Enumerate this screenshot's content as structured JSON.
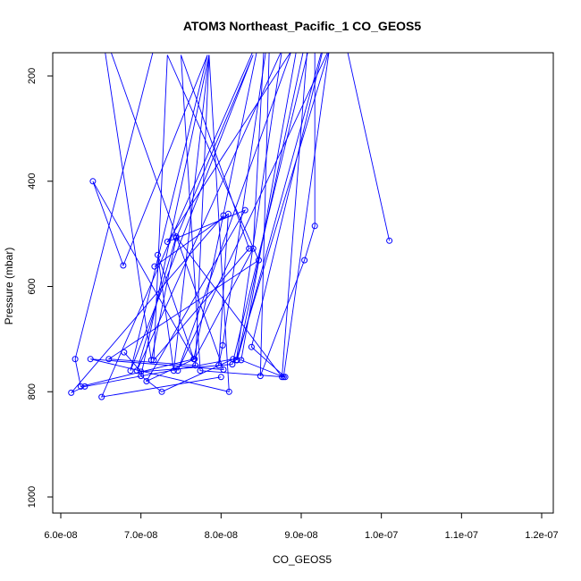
{
  "chart_data": {
    "type": "line",
    "title": "ATOM3 Northeast_Pacific_1 CO_GEOS5",
    "xlabel": "CO_GEOS5",
    "ylabel": "Pressure (mbar)",
    "xlim": [
      6e-08,
      1.2e-07
    ],
    "ylim": [
      1000,
      200
    ],
    "y_reversed": true,
    "x_ticks": [
      6e-08,
      7e-08,
      8e-08,
      9e-08,
      1e-07,
      1.1e-07,
      1.2e-07
    ],
    "x_tick_labels": [
      "6.0e-08",
      "7.0e-08",
      "8.0e-08",
      "9.0e-08",
      "1.0e-07",
      "1.1e-07",
      "1.2e-07"
    ],
    "y_ticks": [
      200,
      400,
      600,
      800,
      1000
    ],
    "y_tick_labels": [
      "200",
      "400",
      "600",
      "800",
      "1000"
    ],
    "grid": false,
    "series_color": "#0000ff",
    "series": [
      {
        "x": [
          7.24e-08,
          6.18e-08,
          6.25e-08,
          7.66e-08,
          7.21e-08,
          7.41e-08,
          7.85e-08,
          8.1e-08,
          6.37e-08,
          8.03e-08,
          6.5e-08,
          7.13e-08,
          7.44e-08,
          8.4e-08,
          6.87e-08,
          7.83e-08,
          6.78e-08,
          6.4e-08,
          7.66e-08,
          8.45e-08
        ],
        "y": [
          100,
          738,
          790,
          738,
          540,
          760,
          160,
          800,
          738,
          758,
          100,
          740,
          508,
          160,
          760,
          160,
          560,
          400,
          738,
          150
        ]
      },
      {
        "x": [
          8.03e-08,
          6.13e-08,
          6.3e-08,
          8.15e-08,
          7.26e-08,
          7e-08,
          7.85e-08,
          7.68e-08,
          6.6e-08,
          8.47e-08,
          7.33e-08,
          7.16e-08,
          8.35e-08,
          7.5e-08,
          7.74e-08,
          8.8e-08,
          8.38e-08,
          9.35e-08,
          8.2e-08,
          9.1e-08
        ],
        "y": [
          465,
          802,
          790,
          738,
          800,
          770,
          160,
          750,
          738,
          550,
          160,
          740,
          528,
          160,
          760,
          772,
          715,
          100,
          740,
          100
        ]
      },
      {
        "x": [
          8e-08,
          6.51e-08,
          8.55e-08,
          8.4e-08,
          7.67e-08,
          7.07e-08,
          8.3e-08,
          7.33e-08,
          9.1e-08,
          8.76e-08,
          7.44e-08,
          6.95e-08,
          8.76e-08,
          8.19e-08,
          9.35e-08,
          8.78e-08,
          8.25e-08,
          9e-08,
          7.46e-08,
          9.5e-08,
          1.01e-07
        ],
        "y": [
          772,
          810,
          100,
          528,
          738,
          780,
          455,
          515,
          100,
          772,
          505,
          760,
          150,
          740,
          150,
          772,
          740,
          100,
          760,
          100,
          513
        ]
      },
      {
        "x": [
          7.17e-08,
          8.09e-08,
          7.97e-08,
          8.02e-08,
          8.61e-08,
          8.49e-08,
          9.04e-08,
          9.17e-08,
          9.17e-08,
          8.14e-08,
          7e-08,
          6.79e-08
        ],
        "y": [
          562,
          462,
          750,
          712,
          100,
          770,
          550,
          485,
          100,
          748,
          762,
          725
        ]
      }
    ]
  }
}
